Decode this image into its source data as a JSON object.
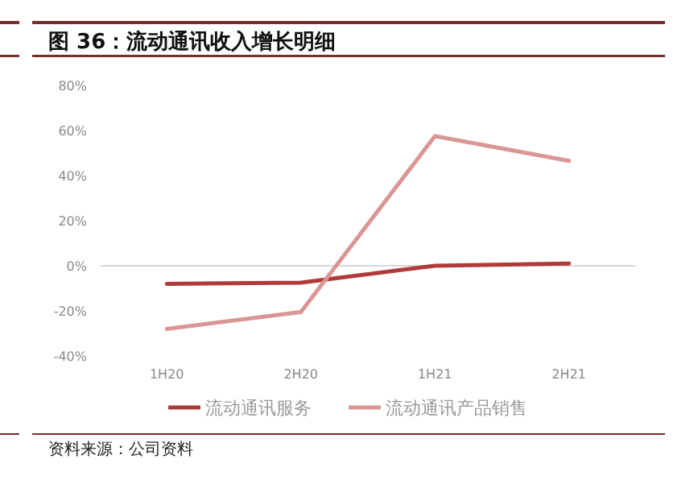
{
  "chart_data": {
    "type": "line",
    "title": "图 36：流动通讯收入增长明细",
    "categories": [
      "1H20",
      "2H20",
      "1H21",
      "2H21"
    ],
    "series": [
      {
        "name": "流动通讯服务",
        "color": "#b03a3a",
        "values": [
          -8,
          -7.5,
          0,
          1
        ]
      },
      {
        "name": "流动通讯产品销售",
        "color": "#d99694",
        "values": [
          -28,
          -20.5,
          57.5,
          46.5
        ]
      }
    ],
    "ylim": [
      -40,
      80
    ],
    "yticks": [
      {
        "value": -40,
        "label": "-40%"
      },
      {
        "value": -20,
        "label": "-20%"
      },
      {
        "value": 0,
        "label": "0%"
      },
      {
        "value": 20,
        "label": "20%"
      },
      {
        "value": 40,
        "label": "40%"
      },
      {
        "value": 60,
        "label": "60%"
      },
      {
        "value": 80,
        "label": "80%"
      }
    ],
    "grid": false,
    "ref_lines": [
      {
        "axis": "y",
        "value": 0,
        "color": "#d9d9d9"
      }
    ],
    "legend": "bottom",
    "marker": "none",
    "line_style": "solid",
    "annotations": [
      "资料来源：公司资料"
    ]
  }
}
